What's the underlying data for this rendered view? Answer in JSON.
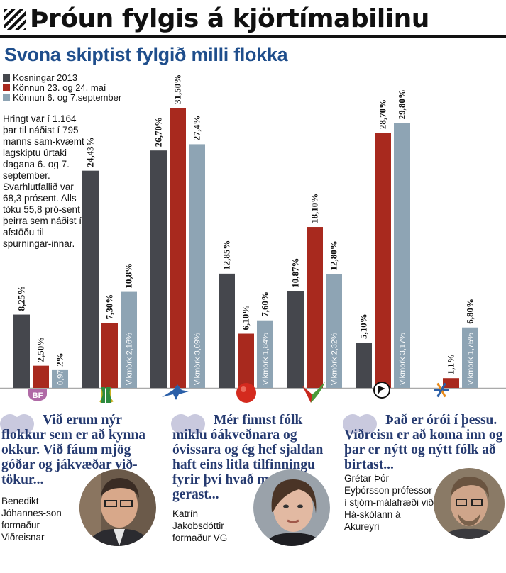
{
  "header": {
    "title": "Þróun fylgis á kjörtímabilinu",
    "subtitle": "Svona skiptist fylgið milli flokka"
  },
  "note": "Hringt var í 1.164 þar til náðist í 795 manns sam-kvæmt lagskiptu úrtaki dagana 6. og 7. september. Svarhlutfallið var 68,3 prósent. Alls tóku 55,8 pró-sent þeirra sem náðist í afstöðu til spurningar-innar.",
  "colors": {
    "series1": "#45474d",
    "series2": "#a8291e",
    "series3": "#8ea4b4",
    "title_blue": "#1f4e8c",
    "quote_blue": "#253a70"
  },
  "chart_data": {
    "type": "bar",
    "categories": [
      "BF",
      "Framsókn",
      "Sjálfstæðisflokkur",
      "Samfylking",
      "VG",
      "Píratar",
      "Viðreisn"
    ],
    "category_icons": [
      "bf-logo-icon",
      "framsokn-logo-icon",
      "falcon-logo-icon",
      "red-ball-logo-icon",
      "vg-logo-icon",
      "pirate-logo-icon",
      "snowflake-logo-icon"
    ],
    "series": [
      {
        "name": "Kosningar 2013",
        "values": [
          8.25,
          24.43,
          26.7,
          12.85,
          10.87,
          5.1,
          null
        ]
      },
      {
        "name": "Könnun 23. og 24. maí",
        "values": [
          2.5,
          7.3,
          31.5,
          6.1,
          18.1,
          28.7,
          1.1
        ]
      },
      {
        "name": "Könnun 6. og 7.september",
        "values": [
          2,
          10.8,
          27.4,
          7.6,
          12.8,
          29.8,
          6.8
        ]
      }
    ],
    "labels": [
      [
        "8,25%",
        "24,43%",
        "26,70%",
        "12,85%",
        "10,87%",
        "5,10%",
        ""
      ],
      [
        "2,50%",
        "7,30%",
        "31,50%",
        "6,10%",
        "18,10%",
        "28,70%",
        "1,1%"
      ],
      [
        "2%",
        "10,8%",
        "27,4%",
        "7,60%",
        "12,80%",
        "29,80%",
        "6,80%"
      ]
    ],
    "margins": [
      "0,97%",
      "Vikmörk 2,16%",
      "Vikmörk 3,09%",
      "Vikmörk 1,84%",
      "Vikmörk 2,32%",
      "Vikmörk 3,17%",
      "Vikmörk 1,75%"
    ],
    "ylim": [
      0,
      32
    ],
    "legend": "top-left"
  },
  "quotes": [
    {
      "text": "Við erum nýr flokkur sem er að kynna okkur. Við fáum mjög góðar og jákvæðar við-tökur...",
      "speaker": "Benedikt Jóhannes-son formaður Viðreisnar"
    },
    {
      "text": "Mér finnst fólk miklu óákveðnara og óvissara og ég hef sjaldan haft eins litla tilfinningu fyrir því hvað muni gerast...",
      "speaker": "Katrín Jakobsdóttir formaður VG"
    },
    {
      "text": "Það er órói í þessu. Viðreisn er að koma inn og þar er nýtt og nýtt fólk að birtast...",
      "speaker": "Grétar Þór Eyþórsson prófessor í stjórn-málafræði við Há-skólann á Akureyri"
    }
  ]
}
